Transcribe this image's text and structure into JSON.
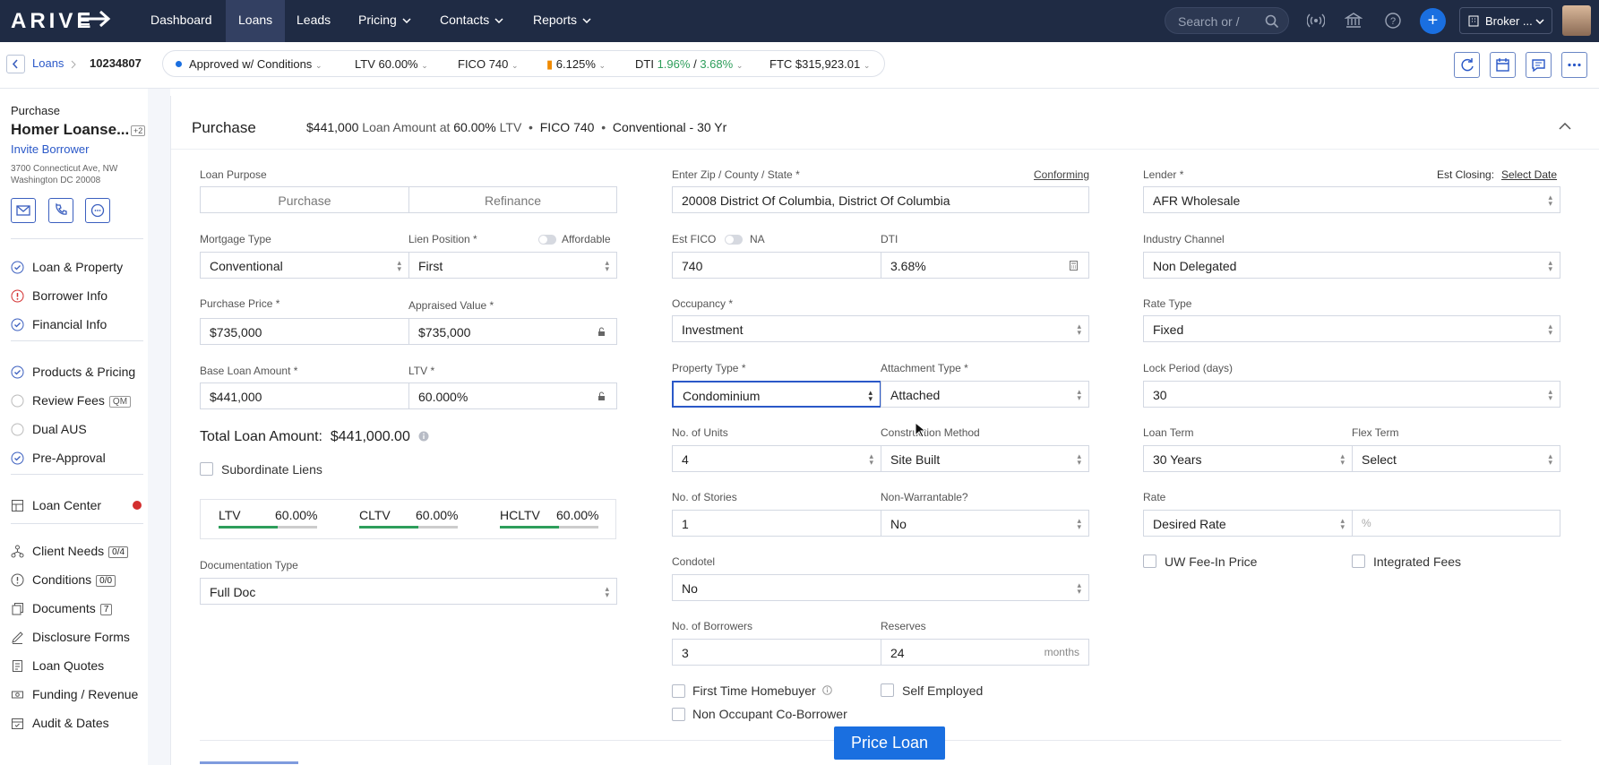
{
  "app": {
    "logo": "ARIVE"
  },
  "nav": {
    "items": [
      "Dashboard",
      "Loans",
      "Leads",
      "Pricing",
      "Contacts",
      "Reports"
    ],
    "search_placeholder": "Search or /",
    "broker_label": "Broker ..."
  },
  "subbar": {
    "breadcrumb_loans": "Loans",
    "loan_id": "10234807",
    "status": "Approved w/ Conditions",
    "ltv_label": "LTV",
    "ltv_value": "60.00%",
    "fico_label": "FICO",
    "fico_value": "740",
    "rate_value": "6.125%",
    "dti_label": "DTI",
    "dti_front": "1.96%",
    "dti_sep": "/",
    "dti_back": "3.68%",
    "ftc_label": "FTC",
    "ftc_value": "$315,923.01"
  },
  "sidebar": {
    "loan_type": "Purchase",
    "borrower_name": "Homer Loanse...",
    "borrower_extra": "+2",
    "invite": "Invite Borrower",
    "address1": "3700 Connecticut Ave, NW",
    "address2": "Washington DC 20008",
    "group1": [
      {
        "label": "Loan & Property",
        "status": "done"
      },
      {
        "label": "Borrower Info",
        "status": "error"
      },
      {
        "label": "Financial Info",
        "status": "done"
      }
    ],
    "group2": [
      {
        "label": "Products & Pricing",
        "status": "done"
      },
      {
        "label": "Review Fees",
        "status": "pending",
        "badge": "QM"
      },
      {
        "label": "Dual AUS",
        "status": "pending"
      },
      {
        "label": "Pre-Approval",
        "status": "done"
      }
    ],
    "loan_center": "Loan Center",
    "group3": [
      {
        "label": "Client Needs",
        "badge": "0/4"
      },
      {
        "label": "Conditions",
        "badge": "0/0"
      },
      {
        "label": "Documents",
        "badge": "7"
      },
      {
        "label": "Disclosure Forms"
      },
      {
        "label": "Loan Quotes"
      },
      {
        "label": "Funding / Revenue"
      },
      {
        "label": "Audit & Dates"
      }
    ]
  },
  "header": {
    "title": "Purchase",
    "amount": "$441,000",
    "amount_text": "Loan Amount at",
    "ltv": "60.00%",
    "ltv_label": "LTV",
    "fico": "FICO 740",
    "program": "Conventional - 30 Yr"
  },
  "col1": {
    "loan_purpose_label": "Loan Purpose",
    "purpose_options": [
      "Purchase",
      "Refinance"
    ],
    "mortgage_type_label": "Mortgage Type",
    "mortgage_type": "Conventional",
    "lien_label": "Lien Position *",
    "affordable_label": "Affordable",
    "lien": "First",
    "purchase_price_label": "Purchase Price *",
    "purchase_price": "$735,000",
    "appraised_label": "Appraised Value *",
    "appraised": "$735,000",
    "base_loan_label": "Base Loan Amount *",
    "base_loan": "$441,000",
    "ltv_label": "LTV *",
    "ltv": "60.000%",
    "total_label": "Total Loan Amount:",
    "total_value": "$441,000.00",
    "subordinate_label": "Subordinate Liens",
    "ltv_summary": [
      {
        "label": "LTV",
        "value": "60.00%"
      },
      {
        "label": "CLTV",
        "value": "60.00%"
      },
      {
        "label": "HCLTV",
        "value": "60.00%"
      }
    ],
    "doc_type_label": "Documentation Type",
    "doc_type": "Full Doc"
  },
  "col2": {
    "zip_label": "Enter Zip / County / State *",
    "conforming": "Conforming",
    "zip": "20008 District Of Columbia, District Of Columbia",
    "fico_label": "Est FICO",
    "na_label": "NA",
    "fico": "740",
    "dti_label": "DTI",
    "dti": "3.68%",
    "occupancy_label": "Occupancy *",
    "occupancy": "Investment",
    "property_type_label": "Property Type *",
    "property_type": "Condominium",
    "attachment_label": "Attachment Type *",
    "attachment": "Attached",
    "units_label": "No. of Units",
    "units": "4",
    "construction_label": "Construction Method",
    "construction": "Site Built",
    "stories_label": "No. of Stories",
    "stories": "1",
    "nonwarrant_label": "Non-Warrantable?",
    "nonwarrant": "No",
    "condotel_label": "Condotel",
    "condotel": "No",
    "borrowers_label": "No. of Borrowers",
    "borrowers": "3",
    "reserves_label": "Reserves",
    "reserves": "24",
    "reserves_unit": "months",
    "fthb_label": "First Time Homebuyer",
    "self_employed_label": "Self Employed",
    "non_occupant_label": "Non Occupant Co-Borrower"
  },
  "col3": {
    "lender_label": "Lender *",
    "est_closing_label": "Est Closing:",
    "est_closing": "Select Date",
    "lender": "AFR Wholesale",
    "channel_label": "Industry Channel",
    "channel": "Non Delegated",
    "rate_type_label": "Rate Type",
    "rate_type": "Fixed",
    "lock_label": "Lock Period (days)",
    "lock": "30",
    "term_label": "Loan Term",
    "term": "30 Years",
    "flex_label": "Flex Term",
    "flex": "Select",
    "rate_label": "Rate",
    "rate_mode": "Desired Rate",
    "rate_unit": "%",
    "uw_fee_label": "UW Fee-In Price",
    "integrated_label": "Integrated Fees"
  },
  "footer": {
    "price_button": "Price Loan"
  },
  "colors": {
    "nav_bg": "#1f2b44",
    "accent": "#1a6fe0",
    "success": "#2e9e5b",
    "error": "#d32f2f"
  }
}
